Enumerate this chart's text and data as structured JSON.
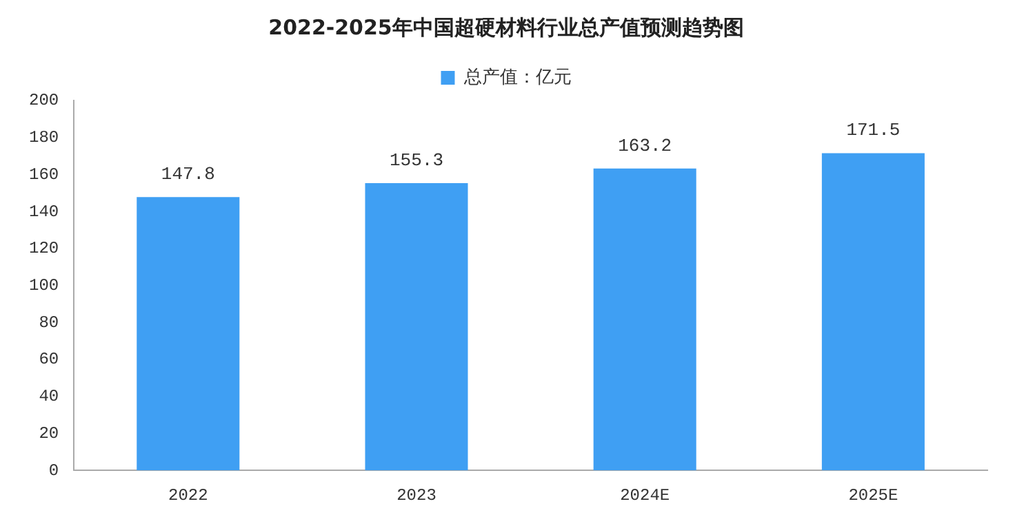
{
  "chart_data": {
    "type": "bar",
    "title": "2022-2025年中国超硬材料行业总产值预测趋势图",
    "categories": [
      "2022",
      "2023",
      "2024E",
      "2025E"
    ],
    "series": [
      {
        "name": "总产值：亿元",
        "color": "#3f9ff3",
        "values": [
          147.8,
          155.3,
          163.2,
          171.5
        ]
      }
    ],
    "ylim": [
      0,
      200
    ],
    "yticks": [
      0,
      20,
      40,
      60,
      80,
      100,
      120,
      140,
      160,
      180,
      200
    ],
    "grid": false,
    "legend": "top",
    "data_labels": true
  }
}
